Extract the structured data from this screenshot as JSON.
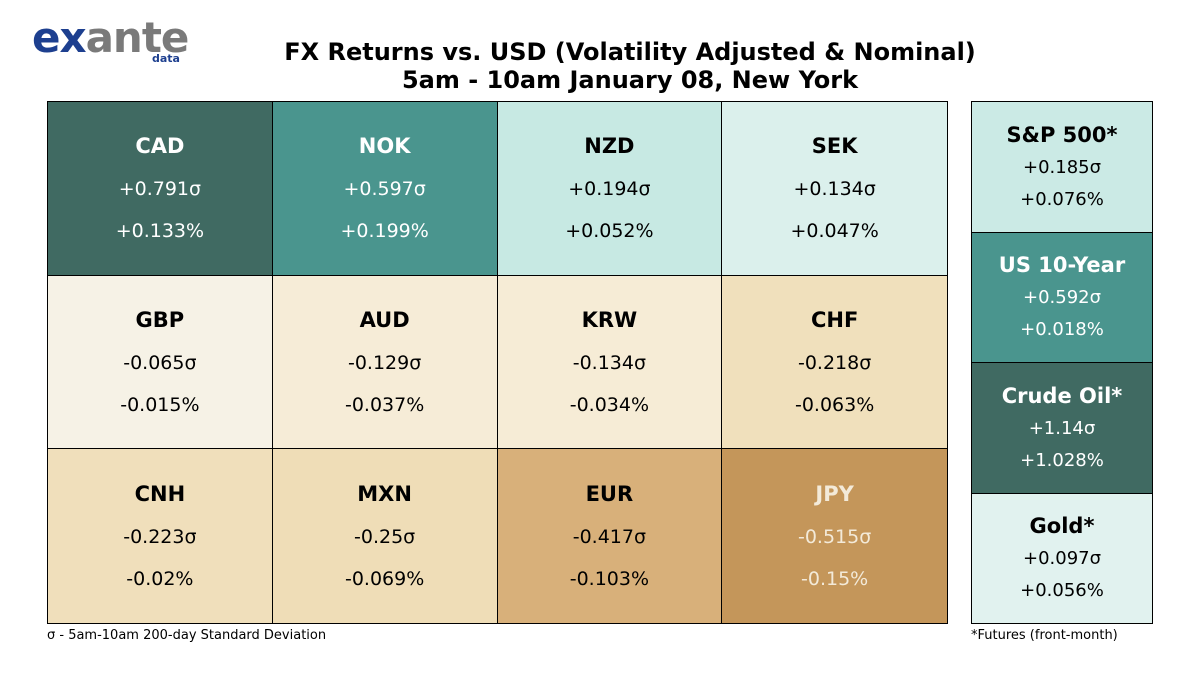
{
  "logo": {
    "brand_a": "ex",
    "brand_b": "ante",
    "sub": "data"
  },
  "title_line1": "FX Returns vs. USD (Volatility Adjusted & Nominal)",
  "title_line2": "5am - 10am January 08, New York",
  "footnote_left": "σ - 5am-10am 200-day Standard Deviation",
  "footnote_right": "*Futures (front-month)",
  "chart_data": {
    "type": "heatmap",
    "title": "FX Returns vs. USD (Volatility Adjusted & Nominal)",
    "subtitle": "5am - 10am January 08, New York",
    "fx": [
      {
        "name": "CAD",
        "sigma": "+0.791σ",
        "nominal": "+0.133%",
        "sigma_value": 0.791,
        "nominal_value": 0.133,
        "bg": "#406a62",
        "fg": "#ffffff"
      },
      {
        "name": "NOK",
        "sigma": "+0.597σ",
        "nominal": "+0.199%",
        "sigma_value": 0.597,
        "nominal_value": 0.199,
        "bg": "#4a958e",
        "fg": "#ffffff"
      },
      {
        "name": "NZD",
        "sigma": "+0.194σ",
        "nominal": "+0.052%",
        "sigma_value": 0.194,
        "nominal_value": 0.052,
        "bg": "#c7e9e3",
        "fg": "#000000"
      },
      {
        "name": "SEK",
        "sigma": "+0.134σ",
        "nominal": "+0.047%",
        "sigma_value": 0.134,
        "nominal_value": 0.047,
        "bg": "#dbf0ec",
        "fg": "#000000"
      },
      {
        "name": "GBP",
        "sigma": "-0.065σ",
        "nominal": "-0.015%",
        "sigma_value": -0.065,
        "nominal_value": -0.015,
        "bg": "#f6f2e6",
        "fg": "#000000"
      },
      {
        "name": "AUD",
        "sigma": "-0.129σ",
        "nominal": "-0.037%",
        "sigma_value": -0.129,
        "nominal_value": -0.037,
        "bg": "#f6ecd7",
        "fg": "#000000"
      },
      {
        "name": "KRW",
        "sigma": "-0.134σ",
        "nominal": "-0.034%",
        "sigma_value": -0.134,
        "nominal_value": -0.034,
        "bg": "#f6ecd6",
        "fg": "#000000"
      },
      {
        "name": "CHF",
        "sigma": "-0.218σ",
        "nominal": "-0.063%",
        "sigma_value": -0.218,
        "nominal_value": -0.063,
        "bg": "#f0e0bc",
        "fg": "#000000"
      },
      {
        "name": "CNH",
        "sigma": "-0.223σ",
        "nominal": "-0.02%",
        "sigma_value": -0.223,
        "nominal_value": -0.02,
        "bg": "#f0dfbb",
        "fg": "#000000"
      },
      {
        "name": "MXN",
        "sigma": "-0.25σ",
        "nominal": "-0.069%",
        "sigma_value": -0.25,
        "nominal_value": -0.069,
        "bg": "#efddb7",
        "fg": "#000000"
      },
      {
        "name": "EUR",
        "sigma": "-0.417σ",
        "nominal": "-0.103%",
        "sigma_value": -0.417,
        "nominal_value": -0.103,
        "bg": "#d8b07a",
        "fg": "#000000"
      },
      {
        "name": "JPY",
        "sigma": "-0.515σ",
        "nominal": "-0.15%",
        "sigma_value": -0.515,
        "nominal_value": -0.15,
        "bg": "#c4965a",
        "fg": "#f3ead9"
      }
    ],
    "other_assets": [
      {
        "name": "S&P 500*",
        "sigma": "+0.185σ",
        "nominal": "+0.076%",
        "sigma_value": 0.185,
        "nominal_value": 0.076,
        "bg": "#cbeae5",
        "fg": "#000000"
      },
      {
        "name": "US 10-Year",
        "sigma": "+0.592σ",
        "nominal": "+0.018%",
        "sigma_value": 0.592,
        "nominal_value": 0.018,
        "bg": "#4a958e",
        "fg": "#ffffff"
      },
      {
        "name": "Crude Oil*",
        "sigma": "+1.14σ",
        "nominal": "+1.028%",
        "sigma_value": 1.14,
        "nominal_value": 1.028,
        "bg": "#406a62",
        "fg": "#ffffff"
      },
      {
        "name": "Gold*",
        "sigma": "+0.097σ",
        "nominal": "+0.056%",
        "sigma_value": 0.097,
        "nominal_value": 0.056,
        "bg": "#e1f2ef",
        "fg": "#000000"
      }
    ]
  }
}
